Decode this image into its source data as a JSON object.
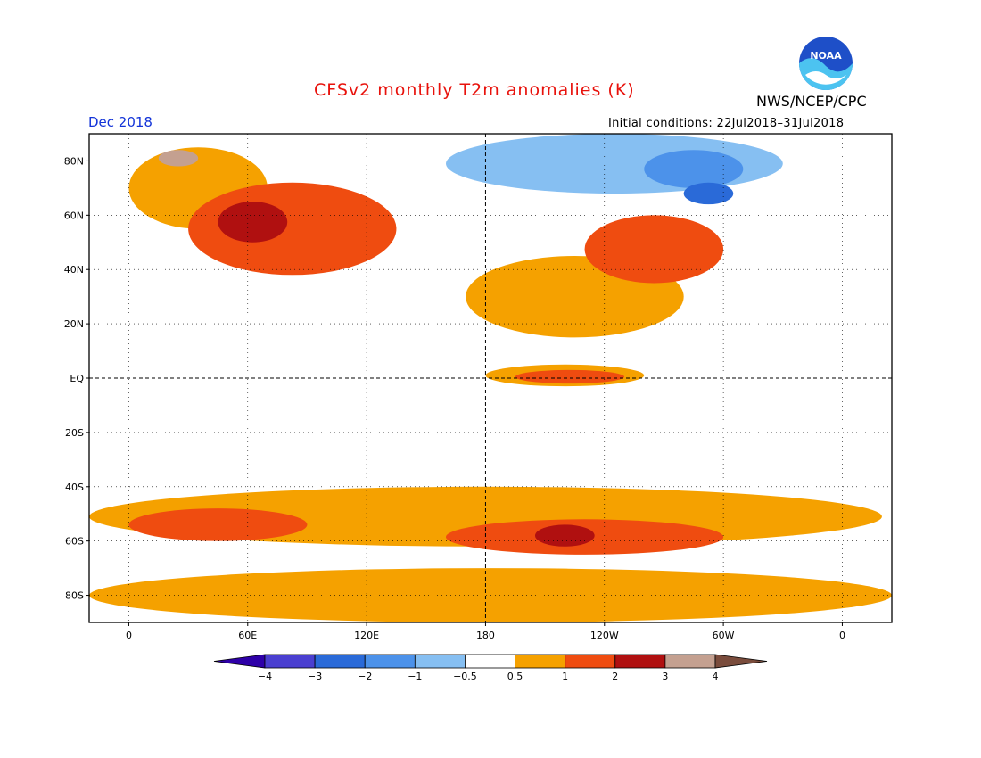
{
  "header": {
    "title": "CFSv2 monthly T2m anomalies (K)",
    "agency": "NWS/NCEP/CPC",
    "period": "Dec 2018",
    "initial_conditions": "Initial conditions: 22Jul2018–31Jul2018",
    "logo_text": "NOAA"
  },
  "map": {
    "lat_labels": [
      "80N",
      "60N",
      "40N",
      "20N",
      "EQ",
      "20S",
      "40S",
      "60S",
      "80S"
    ],
    "lat_values": [
      80,
      60,
      40,
      20,
      0,
      -20,
      -40,
      -60,
      -80
    ],
    "lon_labels": [
      "0",
      "60E",
      "120E",
      "180",
      "120W",
      "60W",
      "0"
    ],
    "lon_values": [
      0,
      60,
      120,
      180,
      240,
      300,
      360
    ],
    "lon_range": [
      -20,
      385
    ],
    "lat_range": [
      -90,
      90
    ],
    "grid": "dotted",
    "anomaly_regions": [
      {
        "level": 1,
        "lon": [
          0,
          70
        ],
        "lat": [
          55,
          85
        ]
      },
      {
        "level": 2,
        "lon": [
          30,
          135
        ],
        "lat": [
          38,
          72
        ]
      },
      {
        "level": 3,
        "lon": [
          45,
          80
        ],
        "lat": [
          50,
          65
        ]
      },
      {
        "level": 4,
        "lon": [
          15,
          35
        ],
        "lat": [
          78,
          84
        ]
      },
      {
        "level": 1,
        "lon": [
          170,
          280
        ],
        "lat": [
          15,
          45
        ]
      },
      {
        "level": 2,
        "lon": [
          230,
          300
        ],
        "lat": [
          35,
          60
        ]
      },
      {
        "level": 1,
        "lon": [
          180,
          260
        ],
        "lat": [
          -3,
          5
        ]
      },
      {
        "level": 2,
        "lon": [
          195,
          250
        ],
        "lat": [
          -2,
          3
        ]
      },
      {
        "level": 1,
        "lon": [
          -20,
          380
        ],
        "lat": [
          -62,
          -40
        ]
      },
      {
        "level": 2,
        "lon": [
          0,
          90
        ],
        "lat": [
          -60,
          -48
        ]
      },
      {
        "level": 2,
        "lon": [
          160,
          300
        ],
        "lat": [
          -65,
          -52
        ]
      },
      {
        "level": 3,
        "lon": [
          205,
          235
        ],
        "lat": [
          -62,
          -54
        ]
      },
      {
        "level": 1,
        "lon": [
          -20,
          385
        ],
        "lat": [
          -90,
          -70
        ]
      },
      {
        "level": -1,
        "lon": [
          160,
          330
        ],
        "lat": [
          68,
          90
        ]
      },
      {
        "level": -2,
        "lon": [
          260,
          310
        ],
        "lat": [
          70,
          84
        ]
      },
      {
        "level": -3,
        "lon": [
          280,
          305
        ],
        "lat": [
          64,
          72
        ]
      }
    ]
  },
  "colorbar": {
    "labels": [
      "−4",
      "−3",
      "−2",
      "−1",
      "−0.5",
      "0.5",
      "1",
      "2",
      "3",
      "4"
    ],
    "colors": [
      "#2e00a8",
      "#4a3fd0",
      "#2a6ad8",
      "#4c92ea",
      "#86bff2",
      "#ffffff",
      "#f5a100",
      "#ef4c10",
      "#b01010",
      "#c4a090",
      "#7a4c3c"
    ]
  }
}
